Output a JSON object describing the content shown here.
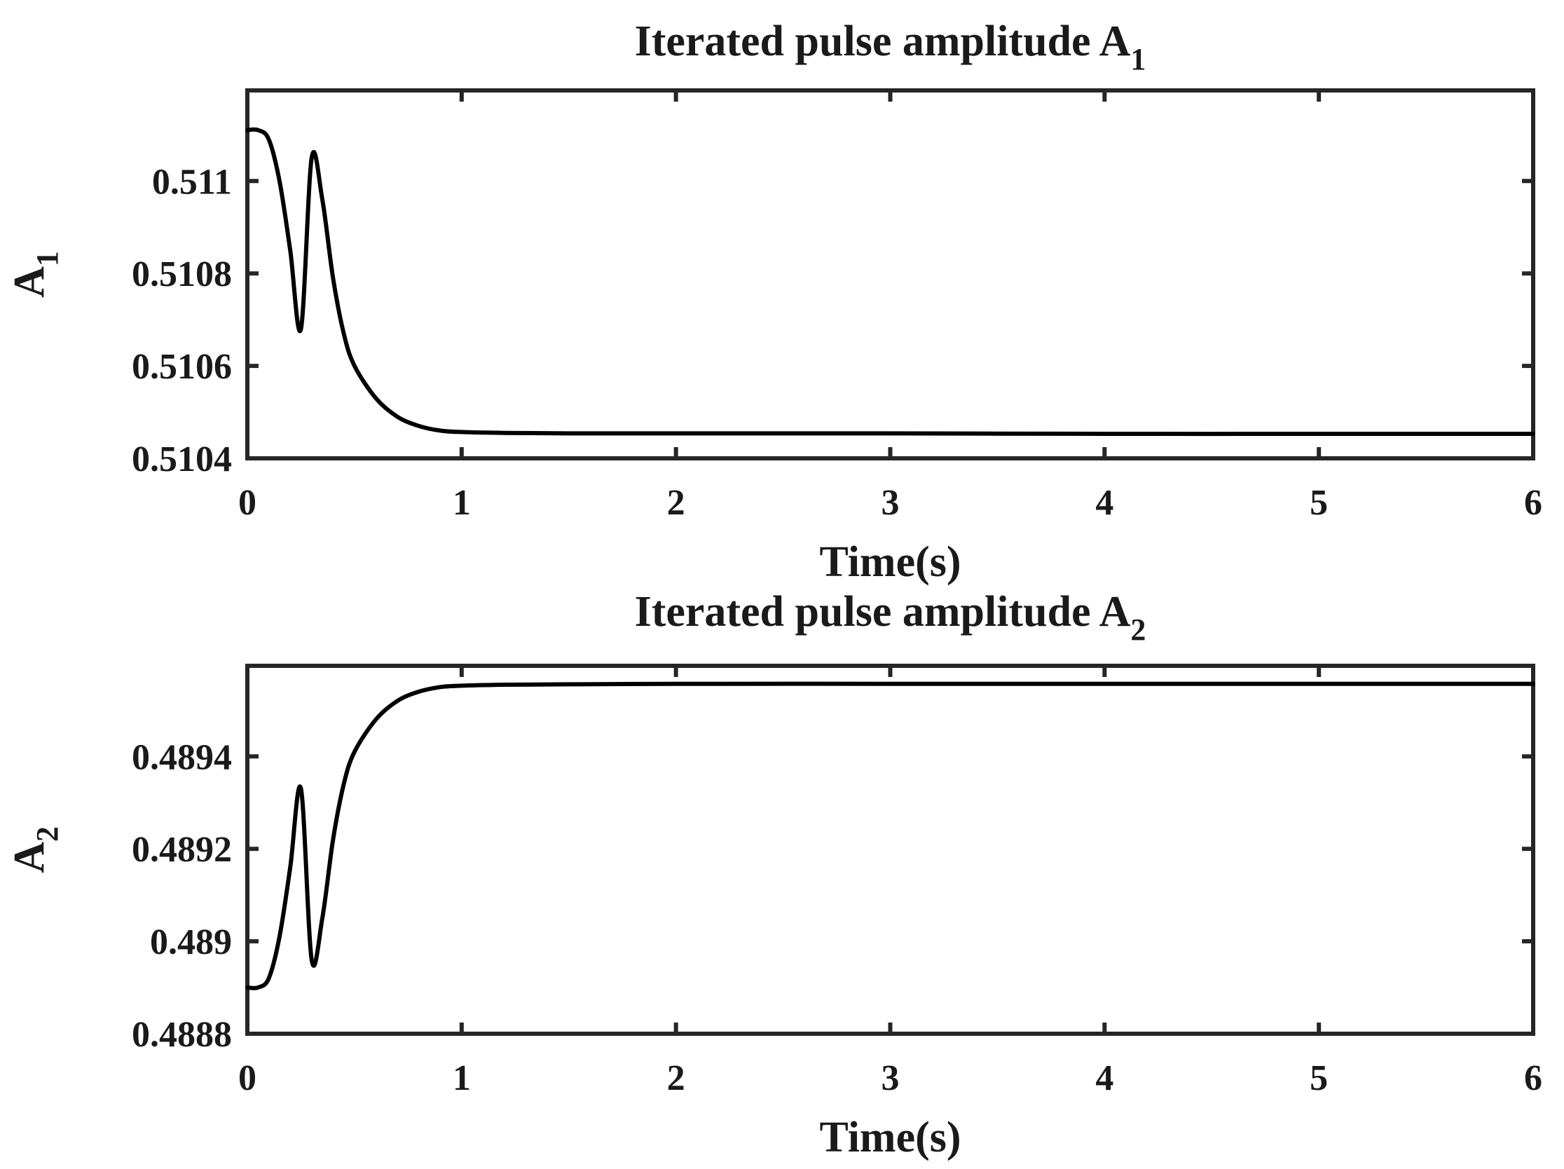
{
  "chart_data": [
    {
      "type": "line",
      "title": "Iterated pulse amplitude A",
      "title_subscript": "1",
      "xlabel": "Time(s)",
      "ylabel": "A",
      "ylabel_subscript": "1",
      "xlim": [
        0,
        6
      ],
      "ylim": [
        0.5104,
        0.511196
      ],
      "xticks": [
        0,
        1,
        2,
        3,
        4,
        5,
        6
      ],
      "xtick_labels": [
        "0",
        "1",
        "2",
        "3",
        "4",
        "5",
        "6"
      ],
      "yticks": [
        0.5104,
        0.5106,
        0.5108,
        0.511
      ],
      "ytick_labels": [
        "0.5104",
        "0.5106",
        "0.5108",
        "0.511"
      ],
      "grid": false,
      "series": [
        {
          "name": "A1",
          "color": "#000000",
          "x": [
            0,
            0.05,
            0.1,
            0.15,
            0.2,
            0.25,
            0.3,
            0.35,
            0.4,
            0.45,
            0.5,
            0.6,
            0.7,
            0.8,
            0.9,
            1.0,
            1.2,
            1.5,
            2,
            3,
            4,
            5,
            6
          ],
          "y": [
            0.51111,
            0.51111,
            0.51109,
            0.511,
            0.51085,
            0.51068,
            0.51105,
            0.51096,
            0.51079,
            0.51067,
            0.5106,
            0.51053,
            0.51049,
            0.51047,
            0.51046,
            0.510457,
            0.510455,
            0.510454,
            0.510454,
            0.510454,
            0.510453,
            0.510453,
            0.510453
          ]
        }
      ]
    },
    {
      "type": "line",
      "title": "Iterated pulse amplitude A",
      "title_subscript": "2",
      "xlabel": "Time(s)",
      "ylabel": "A",
      "ylabel_subscript": "2",
      "xlim": [
        0,
        6
      ],
      "ylim": [
        0.4888,
        0.489596
      ],
      "xticks": [
        0,
        1,
        2,
        3,
        4,
        5,
        6
      ],
      "xtick_labels": [
        "0",
        "1",
        "2",
        "3",
        "4",
        "5",
        "6"
      ],
      "yticks": [
        0.4888,
        0.489,
        0.4892,
        0.4894
      ],
      "ytick_labels": [
        "0.4888",
        "0.489",
        "0.4892",
        "0.4894"
      ],
      "grid": false,
      "series": [
        {
          "name": "A2",
          "color": "#000000",
          "x": [
            0,
            0.05,
            0.1,
            0.15,
            0.2,
            0.25,
            0.3,
            0.35,
            0.4,
            0.45,
            0.5,
            0.6,
            0.7,
            0.8,
            0.9,
            1.0,
            1.2,
            1.5,
            2,
            3,
            4,
            5,
            6
          ],
          "y": [
            0.4889,
            0.4889,
            0.48892,
            0.48901,
            0.48916,
            0.48933,
            0.48896,
            0.48905,
            0.48922,
            0.48934,
            0.48941,
            0.48948,
            0.48952,
            0.48954,
            0.48955,
            0.489553,
            0.489555,
            0.489556,
            0.489557,
            0.489557,
            0.489557,
            0.489557,
            0.489557
          ]
        }
      ]
    }
  ]
}
